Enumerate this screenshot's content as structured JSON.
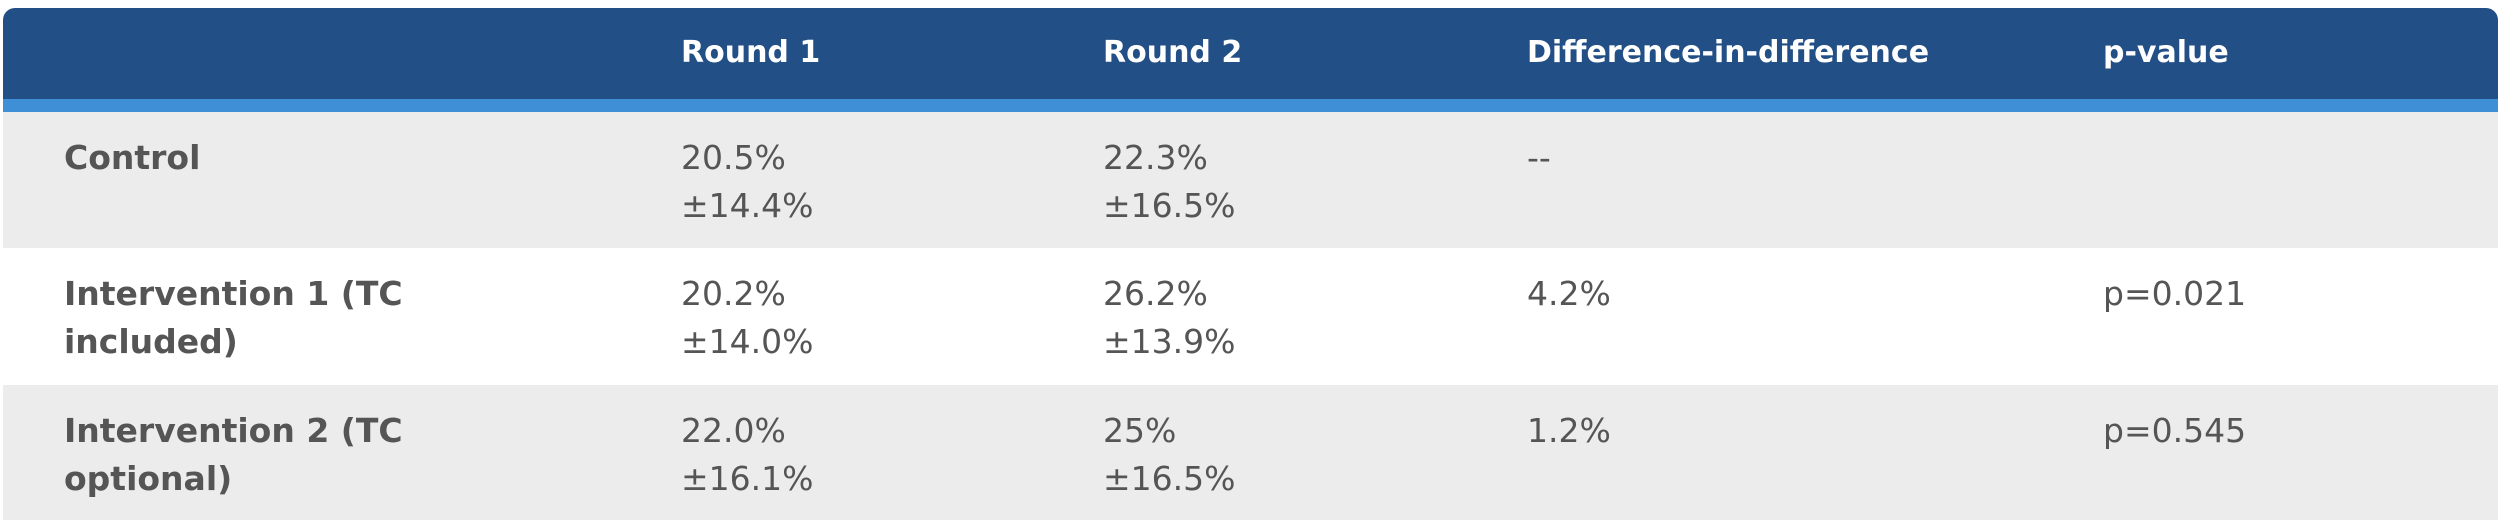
{
  "table": {
    "columns": [
      "Round 1",
      "Round 2",
      "Difference-in-difference",
      "p-value"
    ],
    "rows": [
      {
        "label": "Control",
        "round1": [
          "20.5%",
          "±14.4%"
        ],
        "round2": [
          "22.3%",
          "±16.5%"
        ],
        "did": "--"
      },
      {
        "label": "Intervention 1 (TC included)",
        "round1": [
          "20.2%",
          "±14.0%"
        ],
        "round2": [
          "26.2%",
          "±13.9%"
        ],
        "did": "4.2%",
        "p": "p=0.021"
      },
      {
        "label": "Intervention 2 (TC optional)",
        "round1": [
          "22.0%",
          "±16.1%"
        ],
        "round2": [
          "25%",
          "±16.5%"
        ],
        "did": "1.2%",
        "p": "p=0.545"
      }
    ]
  }
}
